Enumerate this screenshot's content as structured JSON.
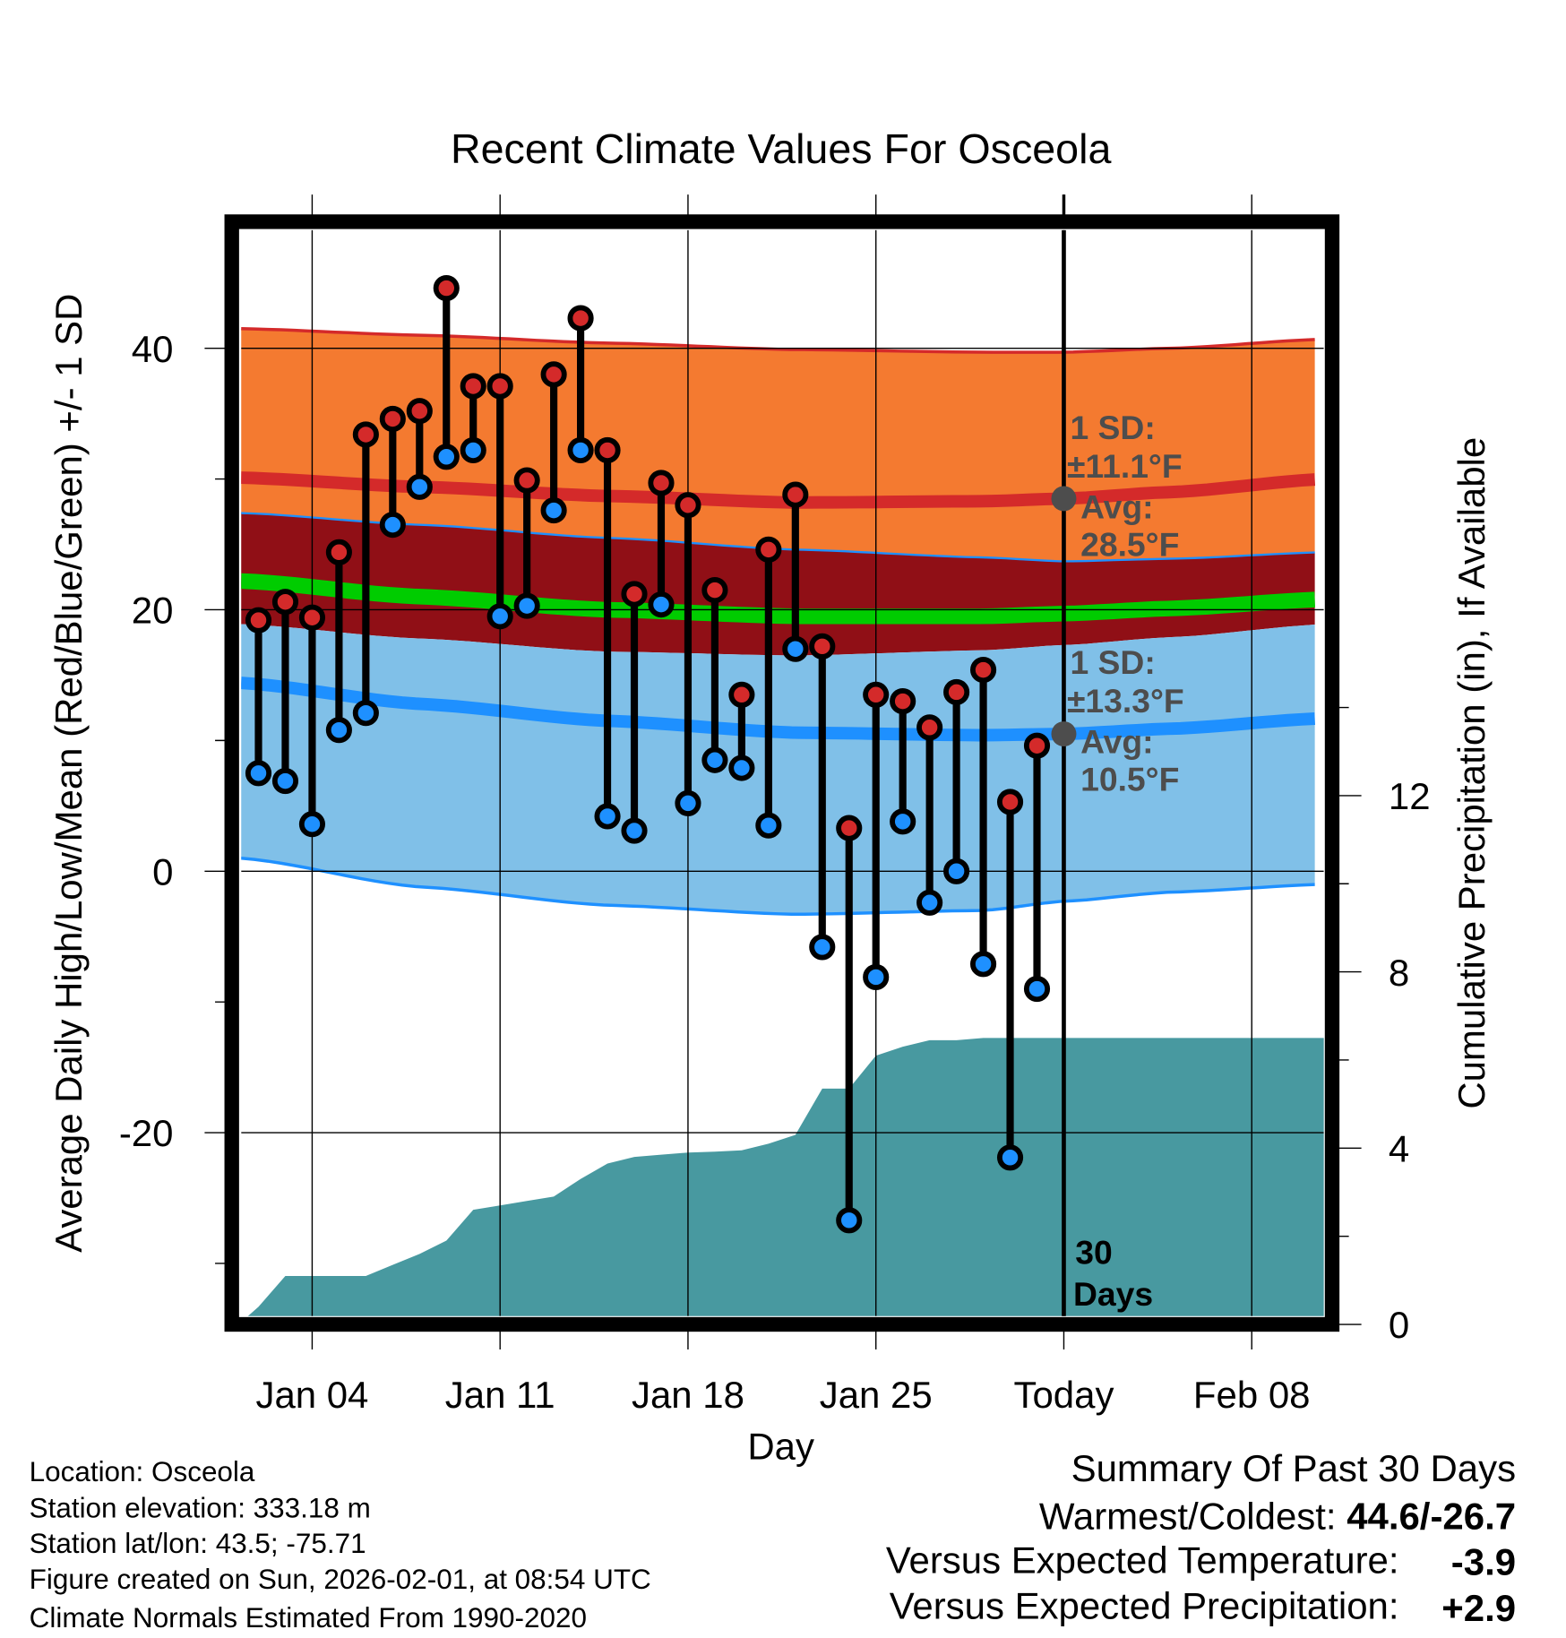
{
  "chart_data": {
    "type": "line",
    "title": "Recent Climate Values For Osceola",
    "xlabel": "Day",
    "ylabel": "Average Daily High/Low/Mean (Red/Blue/Green) +/- 1 SD",
    "y2label": "Cumulative Precipitation (in), If Available",
    "ylim": [
      -34,
      50
    ],
    "y2lim": [
      0,
      24.5
    ],
    "x_ticks": [
      {
        "day": 4,
        "label": "Jan 04"
      },
      {
        "day": 11,
        "label": "Jan 11"
      },
      {
        "day": 18,
        "label": "Jan 18"
      },
      {
        "day": 25,
        "label": "Jan 25"
      },
      {
        "day": 32,
        "label": "Today"
      },
      {
        "day": 39,
        "label": "Feb 08"
      }
    ],
    "y_ticks": [
      "40",
      "20",
      "0",
      "-20"
    ],
    "y_tick_values": [
      40,
      20,
      0,
      -20
    ],
    "y2_ticks": [
      "0",
      "4",
      "8",
      "12"
    ],
    "y2_tick_values": [
      0,
      4,
      8,
      12
    ],
    "days": [
      2,
      3,
      4,
      5,
      6,
      7,
      8,
      9,
      10,
      11,
      12,
      13,
      14,
      15,
      16,
      17,
      18,
      19,
      20,
      21,
      22,
      23,
      24,
      25,
      26,
      27,
      28,
      29,
      30,
      31
    ],
    "series": [
      {
        "name": "Daily High",
        "color": "#d42a2a",
        "values": [
          19.2,
          20.6,
          19.4,
          24.4,
          33.4,
          34.6,
          35.2,
          44.6,
          37.1,
          37.1,
          29.9,
          38.0,
          42.3,
          32.2,
          21.2,
          29.7,
          28.0,
          21.5,
          13.5,
          24.6,
          28.8,
          17.2,
          3.3,
          13.5,
          13.0,
          11.0,
          13.7,
          15.4,
          5.3,
          9.6
        ]
      },
      {
        "name": "Daily Low",
        "color": "#1e90ff",
        "values": [
          7.5,
          6.9,
          3.6,
          10.8,
          12.1,
          26.5,
          29.4,
          31.7,
          32.2,
          19.5,
          20.3,
          27.6,
          32.2,
          4.2,
          3.1,
          20.4,
          5.2,
          8.5,
          7.9,
          3.5,
          17.0,
          -5.8,
          -26.7,
          -8.1,
          3.8,
          -2.4,
          0.0,
          -7.1,
          -21.9,
          -9.0
        ]
      }
    ],
    "normals": {
      "days": [
        1.35,
        8,
        15,
        22,
        29,
        32,
        36,
        41.7
      ],
      "high_plus_sd": [
        41.5,
        41.0,
        40.4,
        39.9,
        39.7,
        39.7,
        40.0,
        40.7
      ],
      "high_mean": [
        30.1,
        29.4,
        28.7,
        28.2,
        28.3,
        28.5,
        29.0,
        30.0
      ],
      "high_minus_sd": [
        27.4,
        26.5,
        25.5,
        24.6,
        24.0,
        23.7,
        23.9,
        24.4
      ],
      "mean": [
        22.2,
        21.0,
        20.0,
        19.5,
        19.5,
        19.7,
        20.1,
        20.8
      ],
      "low_plus_sd": [
        18.9,
        17.8,
        16.8,
        16.5,
        16.9,
        17.3,
        17.9,
        18.9
      ],
      "low_mean": [
        14.4,
        12.8,
        11.5,
        10.6,
        10.4,
        10.5,
        10.9,
        11.7
      ],
      "low_minus_sd": [
        1.0,
        -1.2,
        -2.6,
        -3.3,
        -3.0,
        -2.3,
        -1.6,
        -1.0
      ]
    },
    "precip": {
      "days": [
        1.35,
        2,
        3,
        4,
        5,
        6,
        7,
        8,
        9,
        10,
        11,
        12,
        13,
        14,
        15,
        16,
        17,
        18,
        19,
        20,
        21,
        22,
        23,
        24,
        25,
        26,
        27,
        28,
        29,
        30,
        31,
        32,
        41.7
      ],
      "values": [
        0.05,
        0.4,
        1.1,
        1.1,
        1.1,
        1.1,
        1.35,
        1.6,
        1.9,
        2.6,
        2.7,
        2.8,
        2.9,
        3.3,
        3.65,
        3.8,
        3.85,
        3.9,
        3.92,
        3.95,
        4.1,
        4.3,
        5.35,
        5.35,
        6.1,
        6.3,
        6.45,
        6.45,
        6.5,
        6.5,
        6.5,
        6.5,
        6.5
      ]
    },
    "annotations": {
      "high_sd_line1": "1 SD:",
      "high_sd_line2": "±11.1°F",
      "high_avg_line1": "Avg:",
      "high_avg_line2": "28.5°F",
      "high_avg_value": 28.5,
      "low_sd_line1": "1 SD:",
      "low_sd_line2": "±13.3°F",
      "low_avg_line1": "Avg:",
      "low_avg_line2": "10.5°F",
      "low_avg_value": 10.5,
      "days_line1": "30",
      "days_line2": "Days"
    },
    "today_day": 32
  },
  "footer": {
    "location": "Location: Osceola",
    "elevation": "Station elevation: 333.18 m",
    "latlon": "Station lat/lon: 43.5; -75.71",
    "created": "Figure created on Sun, 2026-02-01, at 08:54 UTC",
    "normals": "Climate Normals Estimated From 1990-2020"
  },
  "summary": {
    "title": "Summary Of Past 30 Days",
    "warmest_label": "Warmest/Coldest: ",
    "warmest_value": "44.6/-26.7",
    "temp_label": "Versus Expected Temperature:",
    "temp_value": "-3.9",
    "temp_color": "#1e90ff",
    "precip_label": "Versus Expected Precipitation:",
    "precip_value": "+2.9",
    "precip_color": "#00bb00"
  }
}
